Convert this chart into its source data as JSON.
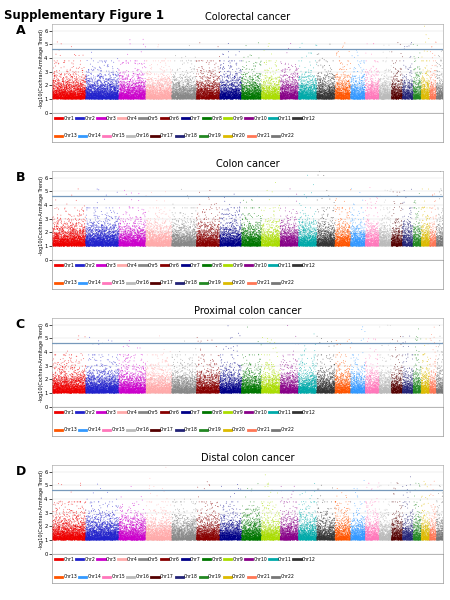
{
  "title": "Supplementary Figure 1",
  "panels": [
    "A",
    "B",
    "C",
    "D"
  ],
  "panel_titles": [
    "Colorectal cancer",
    "Colon cancer",
    "Proximal colon cancer",
    "Distal colon cancer"
  ],
  "ylabel": "-log10(Cochran-Armitage Trend)",
  "ylim": [
    0.0,
    6.5
  ],
  "yticks": [
    0.0,
    1.0,
    2.0,
    3.0,
    4.0,
    5.0,
    6.0
  ],
  "significance_line": 4.7,
  "chr_colors": [
    "#EE0000",
    "#2222CC",
    "#CC00CC",
    "#FFAAAA",
    "#888888",
    "#880000",
    "#000088",
    "#007700",
    "#AADD00",
    "#880088",
    "#00AAAA",
    "#333333",
    "#FF5500",
    "#3399FF",
    "#FF77BB",
    "#BBBBBB",
    "#550000",
    "#222277",
    "#228822",
    "#DDBB00",
    "#FF7755",
    "#777777"
  ],
  "chr_names": [
    "Chr1",
    "Chr2",
    "Chr3",
    "Chr4",
    "Chr5",
    "Chr6",
    "Chr7",
    "Chr8",
    "Chr9",
    "Chr10",
    "Chr11",
    "Chr12",
    "Chr13",
    "Chr14",
    "Chr15",
    "Chr16",
    "Chr17",
    "Chr18",
    "Chr19",
    "Chr20",
    "Chr21",
    "Chr22"
  ],
  "chr_sizes": [
    249,
    243,
    198,
    191,
    181,
    171,
    159,
    145,
    138,
    134,
    135,
    133,
    115,
    107,
    102,
    90,
    81,
    78,
    59,
    63,
    48,
    51
  ],
  "n_points_per_chr": [
    2500,
    2600,
    1900,
    1800,
    1700,
    1600,
    1500,
    1400,
    1200,
    1300,
    1300,
    1200,
    1000,
    950,
    900,
    800,
    700,
    650,
    550,
    600,
    400,
    450
  ],
  "background_color": "#ffffff",
  "grid_color": "#dddddd",
  "figure_bg": "#ffffff",
  "sig_line_color": "#7799BB"
}
